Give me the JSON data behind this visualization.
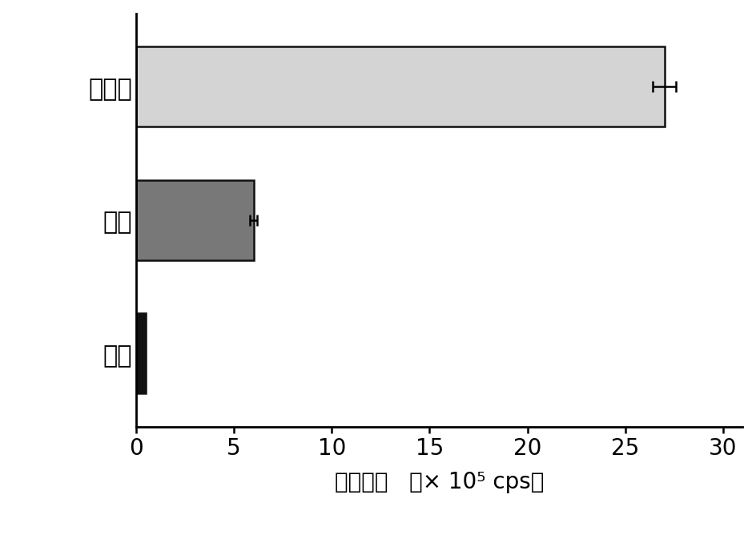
{
  "categories": [
    "空白",
    "杂交",
    "本发明"
  ],
  "values": [
    0.5,
    6.0,
    27.0
  ],
  "errors": [
    0.0,
    0.2,
    0.6
  ],
  "bar_colors": [
    "#111111",
    "#787878",
    "#d4d4d4"
  ],
  "bar_edgecolors": [
    "#111111",
    "#111111",
    "#111111"
  ],
  "ytick_labels": [
    "空白",
    "杂交",
    "本发明"
  ],
  "xlabel_part1": "荧光强度",
  "xlabel_part2": "（× 10",
  "xlabel_part3": " cps）",
  "xlim": [
    0,
    31
  ],
  "xticks": [
    0,
    5,
    10,
    15,
    20,
    25,
    30
  ],
  "bar_height": 0.6,
  "figsize": [
    9.44,
    6.83
  ],
  "dpi": 100,
  "label_fontsize": 22,
  "tick_fontsize": 20,
  "xlabel_fontsize": 20,
  "elinewidth": 1.8,
  "ecapsize": 5,
  "ecapthick": 1.8,
  "spine_linewidth": 2.0
}
